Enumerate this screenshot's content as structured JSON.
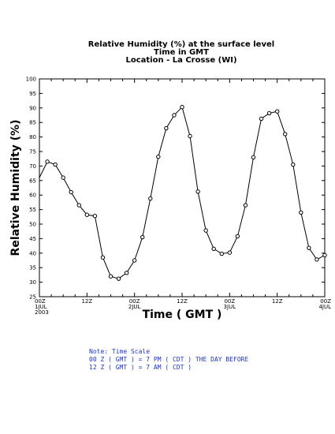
{
  "titles": {
    "line1": "Relative Humidity (%) at the surface level",
    "line2": "Time in GMT",
    "line3": "Location - La Crosse (WI)"
  },
  "note": {
    "line1": "Note: Time Scale",
    "line2": "00 Z ( GMT ) = 7 PM ( CDT ) THE DAY BEFORE",
    "line3": "12 Z ( GMT ) = 7 AM ( CDT )"
  },
  "chart_data": {
    "type": "line",
    "title": "Relative Humidity (%) at the surface level",
    "xlabel": "Time ( GMT )",
    "ylabel": "Relative Humidity (%)",
    "ylim": [
      25,
      100
    ],
    "yticks": [
      25,
      30,
      35,
      40,
      45,
      50,
      55,
      60,
      65,
      70,
      75,
      80,
      85,
      90,
      95,
      100
    ],
    "xlim_hours": [
      0,
      72
    ],
    "xticks": [
      {
        "hour": 0,
        "lines": [
          "00Z",
          "1JUL",
          "2003"
        ]
      },
      {
        "hour": 12,
        "lines": [
          "12Z"
        ]
      },
      {
        "hour": 24,
        "lines": [
          "00Z",
          "2JUL"
        ]
      },
      {
        "hour": 36,
        "lines": [
          "12Z"
        ]
      },
      {
        "hour": 48,
        "lines": [
          "00Z",
          "3JUL"
        ]
      },
      {
        "hour": 60,
        "lines": [
          "12Z"
        ]
      },
      {
        "hour": 72,
        "lines": [
          "00Z",
          "4JUL"
        ]
      }
    ],
    "grid": false,
    "series": [
      {
        "color": "#000000",
        "start_value": 66,
        "x_hours": [
          2,
          4,
          6,
          8,
          10,
          12,
          14,
          16,
          18,
          20,
          22,
          24,
          26,
          28,
          30,
          32,
          34,
          36,
          38,
          40,
          42,
          44,
          46,
          48,
          50,
          52,
          54,
          56,
          58,
          60,
          62,
          64,
          66,
          68,
          70,
          72
        ],
        "values": [
          71.5,
          70.5,
          66,
          61,
          56.5,
          53.2,
          52.8,
          38.5,
          32,
          31.2,
          33.2,
          37.5,
          45.5,
          58.8,
          73.2,
          83,
          87.5,
          90.3,
          80.3,
          61.2,
          47.8,
          41.5,
          39.8,
          40.2,
          45.8,
          56.5,
          73,
          86.3,
          88.2,
          88.8,
          81,
          70.5,
          54,
          41.8,
          37.8,
          39.3
        ]
      }
    ]
  }
}
